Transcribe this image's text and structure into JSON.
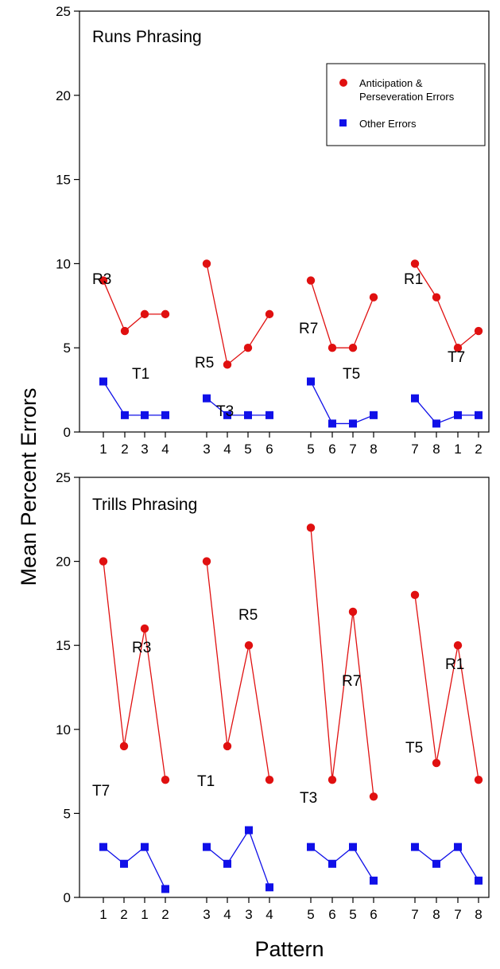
{
  "chart_data": [
    {
      "type": "line",
      "title": "Runs Phrasing",
      "xlabel": "",
      "ylabel": "Mean Percent Errors",
      "ylim": [
        0,
        25
      ],
      "yticks": [
        0,
        5,
        10,
        15,
        20,
        25
      ],
      "grid": false,
      "legend_position": "top-right",
      "legend": [
        "Anticipation & Perseveration Errors",
        "Other Errors"
      ],
      "groups": [
        {
          "x": [
            "1",
            "2",
            "3",
            "4"
          ],
          "anticipation_perseveration": [
            9,
            6,
            7,
            7
          ],
          "other": [
            3,
            1,
            1,
            1
          ],
          "annotations": [
            "R3",
            "T1"
          ]
        },
        {
          "x": [
            "3",
            "4",
            "5",
            "6"
          ],
          "anticipation_perseveration": [
            10,
            4,
            5,
            7
          ],
          "other": [
            2,
            1,
            1,
            1
          ],
          "annotations": [
            "R5",
            "T3"
          ]
        },
        {
          "x": [
            "5",
            "6",
            "7",
            "8"
          ],
          "anticipation_perseveration": [
            9,
            5,
            5,
            8
          ],
          "other": [
            3,
            0.5,
            0.5,
            1
          ],
          "annotations": [
            "R7",
            "T5"
          ]
        },
        {
          "x": [
            "7",
            "8",
            "1",
            "2"
          ],
          "anticipation_perseveration": [
            10,
            8,
            5,
            6
          ],
          "other": [
            2,
            0.5,
            1,
            1
          ],
          "annotations": [
            "R1",
            "T7"
          ]
        }
      ],
      "colors": {
        "anticipation_perseveration": "#e01010",
        "other": "#1010e8"
      }
    },
    {
      "type": "line",
      "title": "Trills Phrasing",
      "xlabel": "Pattern",
      "ylabel": "Mean Percent Errors",
      "ylim": [
        0,
        25
      ],
      "yticks": [
        0,
        5,
        10,
        15,
        20,
        25
      ],
      "grid": false,
      "groups": [
        {
          "x": [
            "1",
            "2",
            "1",
            "2"
          ],
          "anticipation_perseveration": [
            20,
            9,
            16,
            7
          ],
          "other": [
            3,
            2,
            3,
            0.5
          ],
          "annotations": [
            "R3",
            "T7"
          ]
        },
        {
          "x": [
            "3",
            "4",
            "3",
            "4"
          ],
          "anticipation_perseveration": [
            20,
            9,
            15,
            7
          ],
          "other": [
            3,
            2,
            4,
            0.6
          ],
          "annotations": [
            "R5",
            "T1"
          ]
        },
        {
          "x": [
            "5",
            "6",
            "5",
            "6"
          ],
          "anticipation_perseveration": [
            22,
            7,
            17,
            6
          ],
          "other": [
            3,
            2,
            3,
            1
          ],
          "annotations": [
            "R7",
            "T3"
          ]
        },
        {
          "x": [
            "7",
            "8",
            "7",
            "8"
          ],
          "anticipation_perseveration": [
            18,
            8,
            15,
            7
          ],
          "other": [
            3,
            2,
            3,
            1
          ],
          "annotations": [
            "R1",
            "T5"
          ]
        }
      ],
      "colors": {
        "anticipation_perseveration": "#e01010",
        "other": "#1010e8"
      }
    }
  ]
}
